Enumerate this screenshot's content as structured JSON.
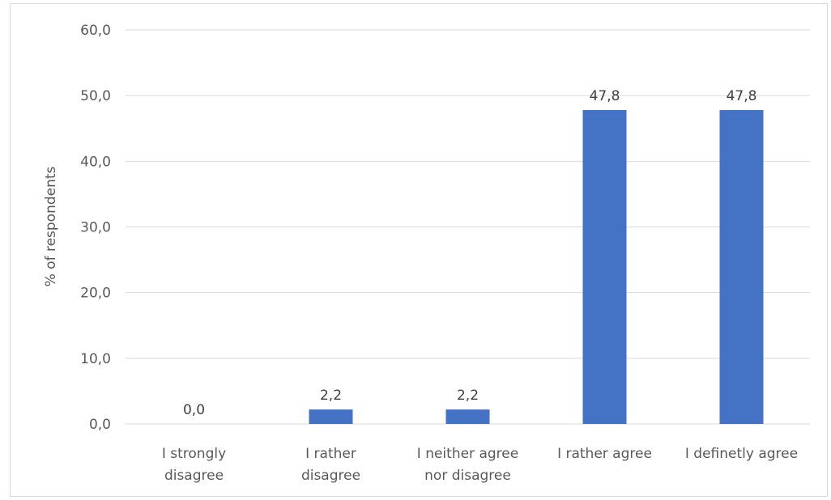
{
  "chart_data": {
    "type": "bar",
    "title": "",
    "xlabel": "",
    "ylabel": "% of respondents",
    "ylim": [
      0,
      60
    ],
    "yticks": [
      "0,0",
      "10,0",
      "20,0",
      "30,0",
      "40,0",
      "50,0",
      "60,0"
    ],
    "categories": [
      [
        "I strongly",
        "disagree"
      ],
      [
        "I rather",
        "disagree"
      ],
      [
        "I neither agree",
        "nor disagree"
      ],
      [
        "I rather agree"
      ],
      [
        "I definetly agree"
      ]
    ],
    "values": [
      0.0,
      2.2,
      2.2,
      47.8,
      47.8
    ],
    "data_labels": [
      "0,0",
      "2,2",
      "2,2",
      "47,8",
      "47,8"
    ],
    "grid": true,
    "bar_color": "#4472c4",
    "gridline_color": "#d9d9d9"
  }
}
